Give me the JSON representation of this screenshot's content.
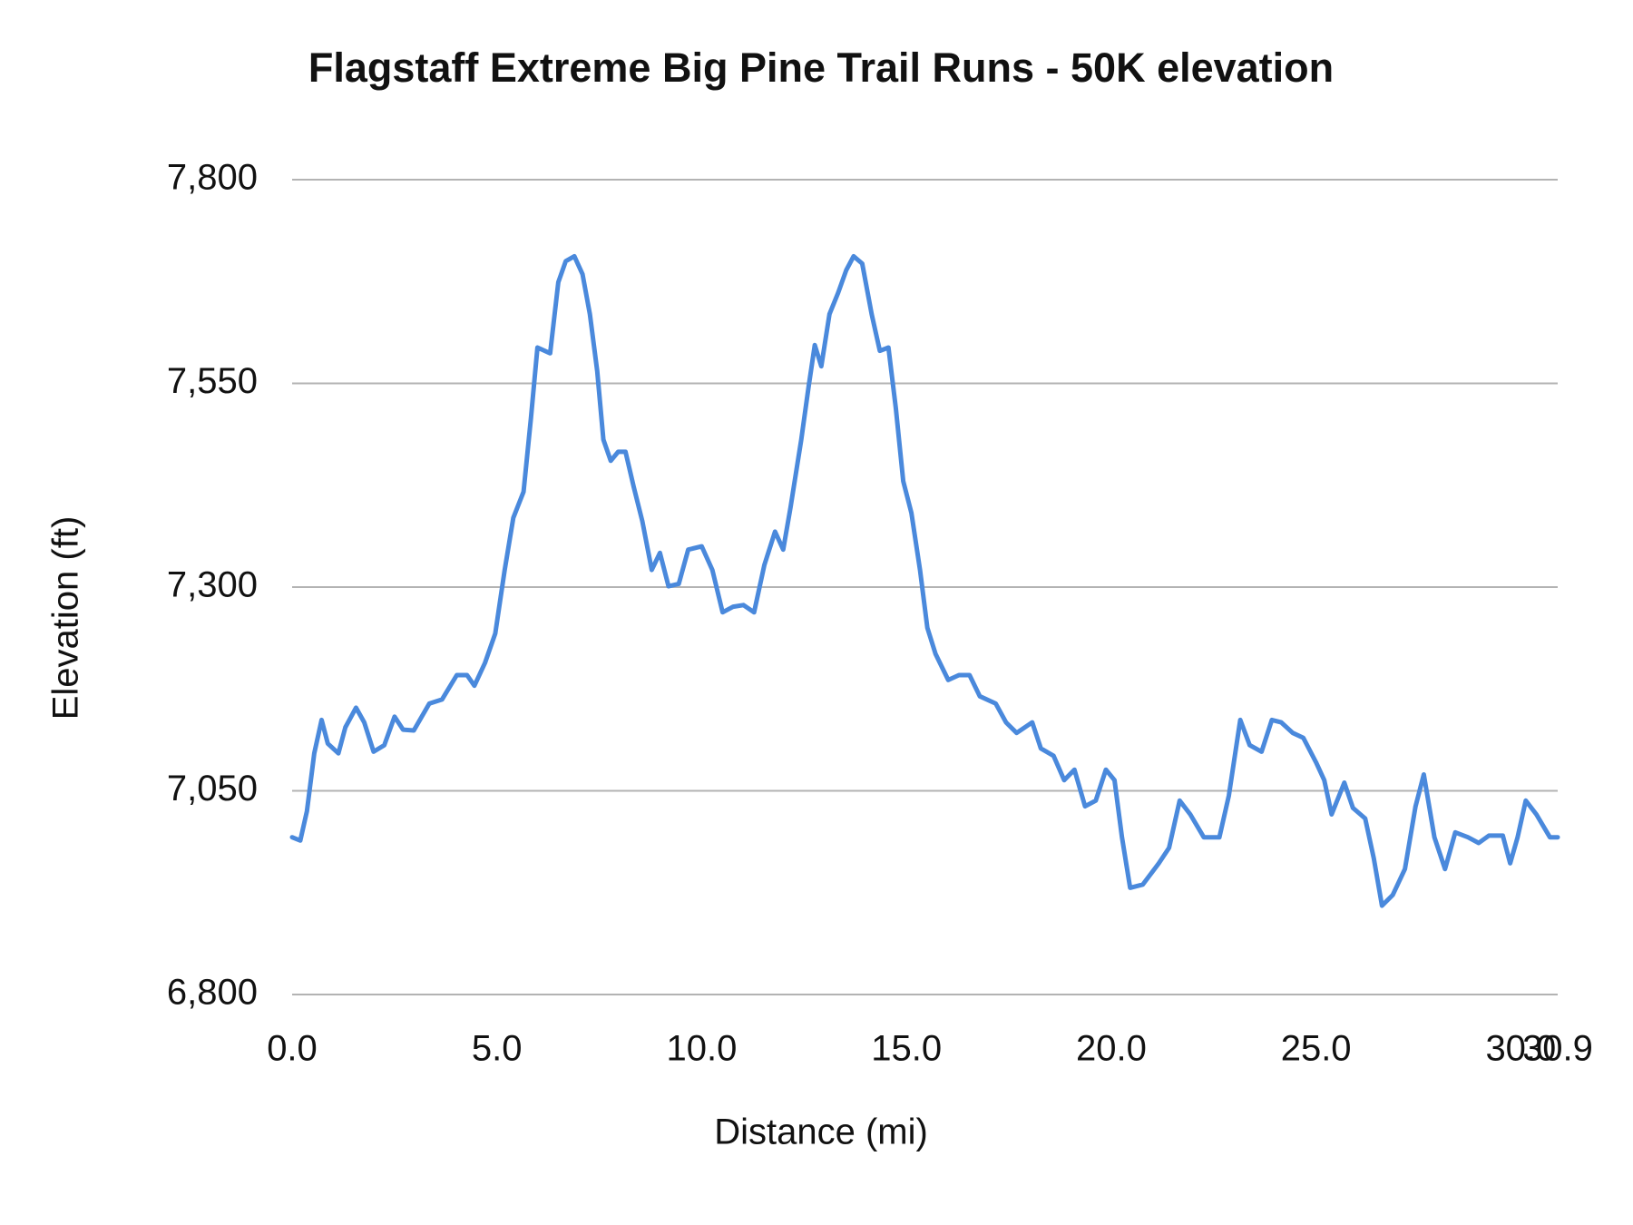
{
  "chart_data": {
    "type": "line",
    "title": "Flagstaff Extreme Big Pine Trail Runs - 50K elevation",
    "x_label": "Distance (mi)",
    "y_label": "Elevation (ft)",
    "color": "#4a89dc",
    "grid": true,
    "xlim": [
      0,
      30.9
    ],
    "xticks": [
      {
        "value": 0,
        "label": "0.0"
      },
      {
        "value": 5,
        "label": "5.0"
      },
      {
        "value": 10,
        "label": "10.0"
      },
      {
        "value": 15,
        "label": "15.0"
      },
      {
        "value": 20,
        "label": "20.0"
      },
      {
        "value": 25,
        "label": "25.0"
      },
      {
        "value": 30,
        "label": "30.0"
      },
      {
        "value": 30.9,
        "label": "30.9"
      }
    ],
    "ylim": [
      6800,
      7800
    ],
    "yticks": [
      {
        "value": 6800,
        "label": "6,800"
      },
      {
        "value": 7050,
        "label": "7,050"
      },
      {
        "value": 7300,
        "label": "7,300"
      },
      {
        "value": 7550,
        "label": "7,550"
      },
      {
        "value": 7800,
        "label": "7,800"
      }
    ],
    "x": [
      0,
      0.2,
      0.36,
      0.54,
      0.72,
      0.87,
      1.13,
      1.3,
      1.56,
      1.76,
      1.99,
      2.25,
      2.5,
      2.71,
      2.97,
      3.35,
      3.66,
      4.02,
      4.27,
      4.45,
      4.71,
      4.96,
      5.19,
      5.4,
      5.65,
      5.83,
      5.99,
      6.3,
      6.5,
      6.68,
      6.89,
      7.09,
      7.27,
      7.45,
      7.6,
      7.78,
      7.96,
      8.14,
      8.34,
      8.55,
      8.78,
      8.98,
      9.19,
      9.44,
      9.67,
      10.0,
      10.26,
      10.51,
      10.77,
      11.02,
      11.28,
      11.53,
      11.79,
      11.99,
      12.17,
      12.43,
      12.61,
      12.76,
      12.92,
      13.12,
      13.33,
      13.53,
      13.71,
      13.92,
      14.15,
      14.35,
      14.56,
      14.74,
      14.92,
      15.12,
      15.33,
      15.51,
      15.71,
      16.02,
      16.28,
      16.54,
      16.79,
      17.18,
      17.43,
      17.69,
      18.07,
      18.28,
      18.59,
      18.85,
      19.1,
      19.36,
      19.62,
      19.87,
      20.08,
      20.26,
      20.46,
      20.77,
      21.16,
      21.41,
      21.67,
      21.93,
      22.26,
      22.64,
      22.87,
      23.15,
      23.38,
      23.67,
      23.92,
      24.15,
      24.43,
      24.69,
      25.0,
      25.2,
      25.38,
      25.69,
      25.9,
      26.2,
      26.41,
      26.61,
      26.87,
      27.17,
      27.43,
      27.63,
      27.89,
      28.15,
      28.4,
      28.71,
      28.97,
      29.22,
      29.56,
      29.74,
      29.92,
      30.12,
      30.38,
      30.71,
      30.9
    ],
    "values": [
      6993,
      6989,
      7025,
      7096,
      7137,
      7108,
      7096,
      7128,
      7152,
      7134,
      7098,
      7106,
      7141,
      7125,
      7124,
      7157,
      7162,
      7192,
      7192,
      7179,
      7207,
      7243,
      7321,
      7385,
      7417,
      7507,
      7594,
      7587,
      7674,
      7700,
      7706,
      7684,
      7635,
      7565,
      7481,
      7455,
      7466,
      7466,
      7423,
      7381,
      7321,
      7342,
      7301,
      7304,
      7346,
      7350,
      7321,
      7269,
      7276,
      7278,
      7269,
      7327,
      7368,
      7346,
      7398,
      7481,
      7546,
      7597,
      7571,
      7635,
      7661,
      7689,
      7706,
      7697,
      7635,
      7590,
      7594,
      7520,
      7430,
      7391,
      7321,
      7250,
      7218,
      7186,
      7192,
      7192,
      7166,
      7157,
      7134,
      7121,
      7134,
      7102,
      7093,
      7063,
      7076,
      7031,
      7038,
      7076,
      7063,
      6993,
      6931,
      6935,
      6961,
      6980,
      7038,
      7021,
      6993,
      6993,
      7044,
      7137,
      7106,
      7098,
      7137,
      7134,
      7121,
      7115,
      7085,
      7063,
      7021,
      7060,
      7029,
      7016,
      6967,
      6909,
      6922,
      6954,
      7031,
      7070,
      6993,
      6954,
      6999,
      6993,
      6986,
      6995,
      6995,
      6961,
      6993,
      7038,
      7021,
      6993,
      6993
    ]
  }
}
